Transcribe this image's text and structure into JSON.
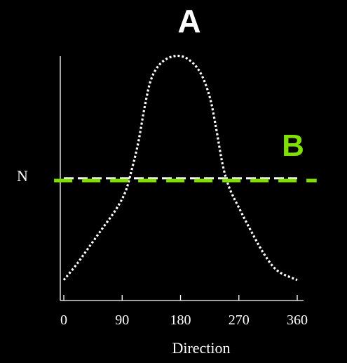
{
  "chart_data": {
    "type": "line",
    "panel_labels": {
      "a": "A",
      "b": "B"
    },
    "ylabel": "N",
    "xlabel": "Direction",
    "xlim": [
      0,
      360
    ],
    "x_ticks": [
      0,
      90,
      180,
      270,
      360
    ],
    "x_tick_labels": [
      "0",
      "90",
      "180",
      "270",
      "360"
    ],
    "ylim": [
      0,
      1
    ],
    "series": [
      {
        "style": "dotted",
        "color": "#ffffff",
        "points": [
          [
            0,
            0.01
          ],
          [
            20,
            0.08
          ],
          [
            40,
            0.16
          ],
          [
            60,
            0.24
          ],
          [
            80,
            0.32
          ],
          [
            95,
            0.4
          ],
          [
            105,
            0.5
          ],
          [
            115,
            0.62
          ],
          [
            125,
            0.78
          ],
          [
            135,
            0.9
          ],
          [
            150,
            0.97
          ],
          [
            170,
            1.0
          ],
          [
            190,
            0.99
          ],
          [
            210,
            0.93
          ],
          [
            225,
            0.82
          ],
          [
            235,
            0.68
          ],
          [
            245,
            0.52
          ],
          [
            255,
            0.42
          ],
          [
            270,
            0.33
          ],
          [
            290,
            0.22
          ],
          [
            310,
            0.12
          ],
          [
            330,
            0.05
          ],
          [
            360,
            0.01
          ]
        ]
      },
      {
        "style": "dashed",
        "color": "#ffffff",
        "points": [
          [
            0,
            0.46
          ],
          [
            360,
            0.46
          ]
        ]
      },
      {
        "style": "dashed",
        "color": "#7fe000",
        "points": [
          [
            -15,
            0.45
          ],
          [
            390,
            0.45
          ]
        ]
      }
    ]
  }
}
